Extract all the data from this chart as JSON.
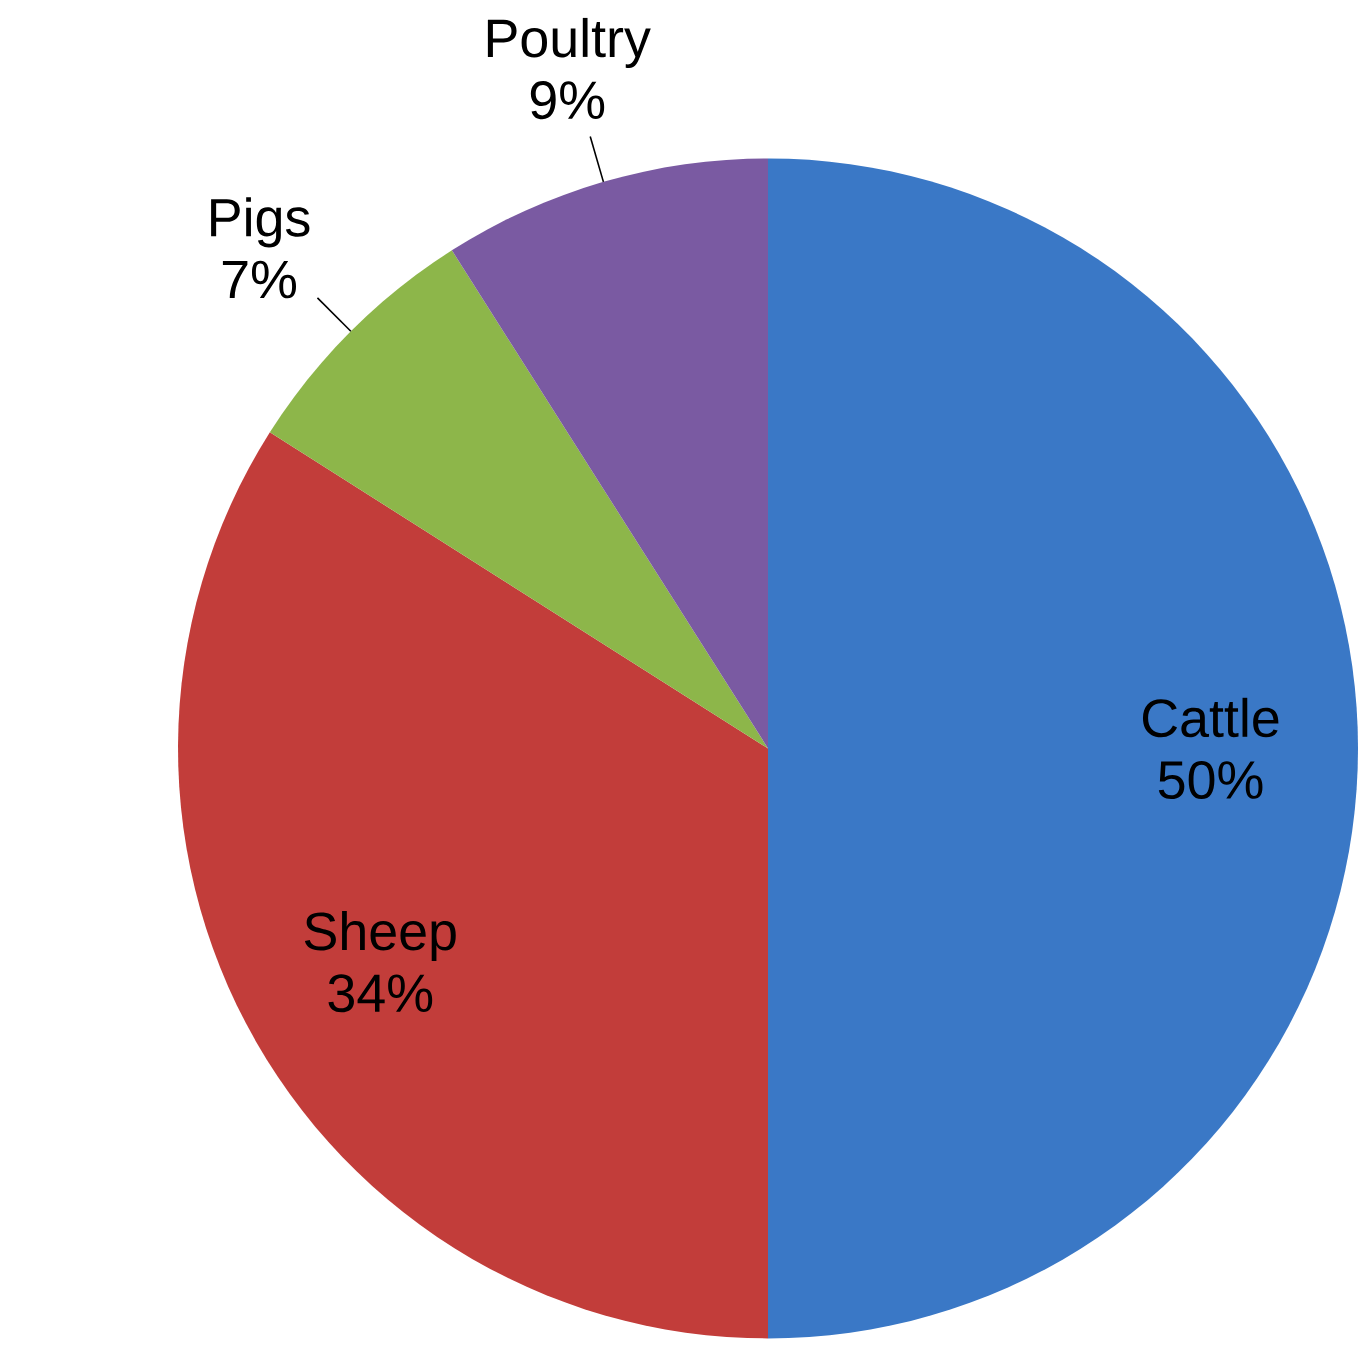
{
  "chart_data": {
    "type": "pie",
    "categories": [
      "Cattle",
      "Sheep",
      "Pigs",
      "Poultry"
    ],
    "values": [
      50,
      34,
      7,
      9
    ],
    "value_labels": [
      "50%",
      "34%",
      "7%",
      "9%"
    ],
    "colors": [
      "#3a78c6",
      "#c23d3a",
      "#8db64a",
      "#7a5aa2"
    ]
  }
}
